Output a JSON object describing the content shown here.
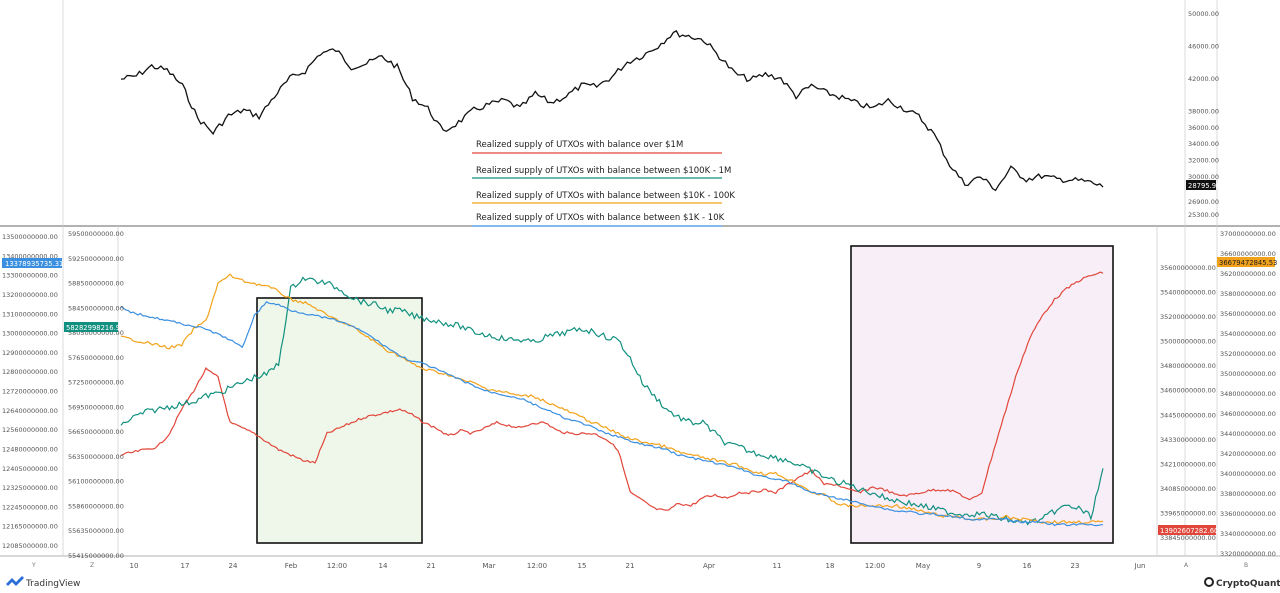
{
  "chart_data": [
    {
      "type": "line",
      "title": "",
      "series": [
        {
          "values": [
            42000,
            42400,
            43600,
            43100,
            41200,
            37200,
            35400,
            37500,
            38200,
            37400,
            39900,
            42100,
            43000,
            45200,
            45600,
            43500,
            43900,
            44800,
            43500,
            39700,
            38400,
            35500,
            36700,
            38200,
            38900,
            39400,
            38400,
            40200,
            39100,
            39900,
            41200,
            41100,
            42300,
            44100,
            44900,
            46100,
            47700,
            47300,
            46800,
            44800,
            42700,
            41900,
            42600,
            42100,
            39900,
            41200,
            40300,
            39700,
            39000,
            38400,
            39400,
            38400,
            37400,
            35200,
            31500,
            29100,
            30000,
            28500,
            31000,
            29700,
            30100,
            29700,
            29600,
            29400,
            28795.98
          ]
        }
      ],
      "y_ticks": [
        "50000.00",
        "46000.00",
        "42000.00",
        "38000.00",
        "36000.00",
        "34000.00",
        "32000.00",
        "30000.00",
        "26900.00",
        "25300.00"
      ],
      "last_value_label": "28795.98",
      "ylim": [
        25300,
        50500
      ]
    },
    {
      "type": "line",
      "legend": [
        "Realized supply of UTXOs with balance over $1M",
        "Realized supply of UTXOs with balance between $100K - 1M",
        "Realized supply of UTXOs with balance between $10K - 100K",
        "Realized supply of UTXOs with balance between $1K - 10K"
      ],
      "x_ticks": [
        "10",
        "17",
        "24",
        "Feb",
        "12:00",
        "14",
        "21",
        "Mar",
        "12:00",
        "15",
        "21",
        "Apr",
        "11",
        "18",
        "12:00",
        "May",
        "9",
        "16",
        "23",
        "Jun"
      ],
      "y_left_outer": [
        "13500000000.00",
        "13400000000.00",
        "13300000000.00",
        "13200000000.00",
        "13100000000.00",
        "13000000000.00",
        "12900000000.00",
        "12800000000.00",
        "12720000000.00",
        "12640000000.00",
        "12560000000.00",
        "12480000000.00",
        "12405000000.00",
        "12325000000.00",
        "12245000000.00",
        "12165000000.00",
        "12085000000.00"
      ],
      "y_left_inner": [
        "59500000000.00",
        "59250000000.00",
        "58850000000.00",
        "58450000000.00",
        "58050000000.00",
        "57650000000.00",
        "57250000000.00",
        "56950000000.00",
        "56650000000.00",
        "56350000000.00",
        "56100000000.00",
        "55860000000.00",
        "55635000000.00",
        "55415000000.00"
      ],
      "y_right_inner": [
        "35600000000.00",
        "35400000000.00",
        "35200000000.00",
        "35000000000.00",
        "34800000000.00",
        "34600000000.00",
        "34450000000.00",
        "34330000000.00",
        "34210000000.00",
        "34085000000.00",
        "33965000000.00",
        "33845000000.00"
      ],
      "y_right_outer": [
        "37000000000.00",
        "36600000000.00",
        "36200000000.00",
        "35800000000.00",
        "35600000000.00",
        "35400000000.00",
        "35200000000.00",
        "35000000000.00",
        "34800000000.00",
        "34600000000.00",
        "34400000000.00",
        "34200000000.00",
        "34000000000.00",
        "33800000000.00",
        "33600000000.00",
        "33400000000.00",
        "33200000000.00"
      ],
      "tags": {
        "blue": "13378935735.31",
        "green": "58282998216.92",
        "orange": "36679472845.53",
        "red": "13902607282.60"
      },
      "colors": {
        "red": "#e0473a",
        "green": "#12907f",
        "orange": "#f2a21a",
        "blue": "#3b8fe0",
        "black": "#111111"
      },
      "series": [
        {
          "color_key": "red",
          "ylim": [
            0,
            1
          ],
          "values": [
            0.28,
            0.29,
            0.3,
            0.31,
            0.36,
            0.45,
            0.52,
            0.6,
            0.57,
            0.4,
            0.38,
            0.36,
            0.33,
            0.3,
            0.28,
            0.26,
            0.25,
            0.36,
            0.38,
            0.4,
            0.42,
            0.43,
            0.44,
            0.45,
            0.43,
            0.4,
            0.38,
            0.35,
            0.37,
            0.36,
            0.38,
            0.4,
            0.39,
            0.38,
            0.4,
            0.4,
            0.37,
            0.36,
            0.36,
            0.36,
            0.34,
            0.3,
            0.14,
            0.11,
            0.08,
            0.07,
            0.1,
            0.09,
            0.12,
            0.13,
            0.12,
            0.14,
            0.14,
            0.15,
            0.14,
            0.17,
            0.2,
            0.22,
            0.17,
            0.17,
            0.15,
            0.14,
            0.16,
            0.15,
            0.13,
            0.13,
            0.14,
            0.15,
            0.15,
            0.14,
            0.11,
            0.14,
            0.3,
            0.45,
            0.6,
            0.72,
            0.8,
            0.86,
            0.9,
            0.93,
            0.95,
            0.96
          ]
        },
        {
          "color_key": "green",
          "ylim": [
            0,
            1
          ],
          "values": [
            0.39,
            0.42,
            0.44,
            0.45,
            0.46,
            0.47,
            0.48,
            0.5,
            0.51,
            0.53,
            0.55,
            0.57,
            0.58,
            0.62,
            0.9,
            0.94,
            0.93,
            0.92,
            0.9,
            0.87,
            0.85,
            0.84,
            0.82,
            0.82,
            0.8,
            0.79,
            0.78,
            0.77,
            0.76,
            0.74,
            0.73,
            0.72,
            0.71,
            0.71,
            0.7,
            0.72,
            0.73,
            0.74,
            0.75,
            0.74,
            0.72,
            0.71,
            0.64,
            0.55,
            0.5,
            0.45,
            0.42,
            0.4,
            0.4,
            0.36,
            0.32,
            0.31,
            0.29,
            0.28,
            0.27,
            0.26,
            0.24,
            0.22,
            0.2,
            0.18,
            0.17,
            0.15,
            0.14,
            0.12,
            0.11,
            0.1,
            0.09,
            0.08,
            0.07,
            0.06,
            0.06,
            0.06,
            0.05,
            0.04,
            0.03,
            0.03,
            0.04,
            0.07,
            0.09,
            0.08,
            0.05,
            0.22
          ]
        },
        {
          "color_key": "orange",
          "ylim": [
            0,
            1
          ],
          "values": [
            0.72,
            0.71,
            0.7,
            0.69,
            0.68,
            0.69,
            0.75,
            0.78,
            0.92,
            0.95,
            0.93,
            0.92,
            0.91,
            0.89,
            0.86,
            0.85,
            0.83,
            0.8,
            0.78,
            0.76,
            0.73,
            0.7,
            0.67,
            0.65,
            0.62,
            0.6,
            0.59,
            0.58,
            0.56,
            0.55,
            0.53,
            0.52,
            0.51,
            0.5,
            0.5,
            0.48,
            0.46,
            0.44,
            0.42,
            0.4,
            0.38,
            0.36,
            0.34,
            0.33,
            0.32,
            0.31,
            0.29,
            0.28,
            0.27,
            0.26,
            0.25,
            0.24,
            0.22,
            0.21,
            0.21,
            0.19,
            0.17,
            0.14,
            0.13,
            0.1,
            0.09,
            0.09,
            0.09,
            0.09,
            0.09,
            0.08,
            0.07,
            0.06,
            0.05,
            0.05,
            0.04,
            0.04,
            0.04,
            0.05,
            0.04,
            0.04,
            0.03,
            0.03,
            0.03,
            0.03,
            0.03,
            0.03
          ]
        },
        {
          "color_key": "blue",
          "ylim": [
            0,
            1
          ],
          "values": [
            0.83,
            0.81,
            0.8,
            0.79,
            0.78,
            0.77,
            0.76,
            0.75,
            0.73,
            0.71,
            0.68,
            0.8,
            0.85,
            0.84,
            0.82,
            0.81,
            0.8,
            0.79,
            0.78,
            0.76,
            0.74,
            0.71,
            0.68,
            0.65,
            0.63,
            0.62,
            0.6,
            0.58,
            0.56,
            0.54,
            0.52,
            0.51,
            0.5,
            0.49,
            0.47,
            0.45,
            0.43,
            0.41,
            0.4,
            0.38,
            0.36,
            0.35,
            0.33,
            0.32,
            0.31,
            0.3,
            0.28,
            0.27,
            0.26,
            0.25,
            0.24,
            0.23,
            0.21,
            0.2,
            0.19,
            0.18,
            0.16,
            0.14,
            0.13,
            0.12,
            0.11,
            0.1,
            0.09,
            0.08,
            0.07,
            0.07,
            0.06,
            0.06,
            0.05,
            0.05,
            0.04,
            0.04,
            0.04,
            0.04,
            0.03,
            0.03,
            0.03,
            0.02,
            0.02,
            0.02,
            0.02,
            0.02
          ]
        }
      ]
    }
  ],
  "branding": {
    "tradingview": "TradingView",
    "cryptoquant": "CryptoQuant",
    "corner_left_1": "Y",
    "corner_left_2": "Z",
    "corner_right_1": "A",
    "corner_right_2": "B"
  }
}
